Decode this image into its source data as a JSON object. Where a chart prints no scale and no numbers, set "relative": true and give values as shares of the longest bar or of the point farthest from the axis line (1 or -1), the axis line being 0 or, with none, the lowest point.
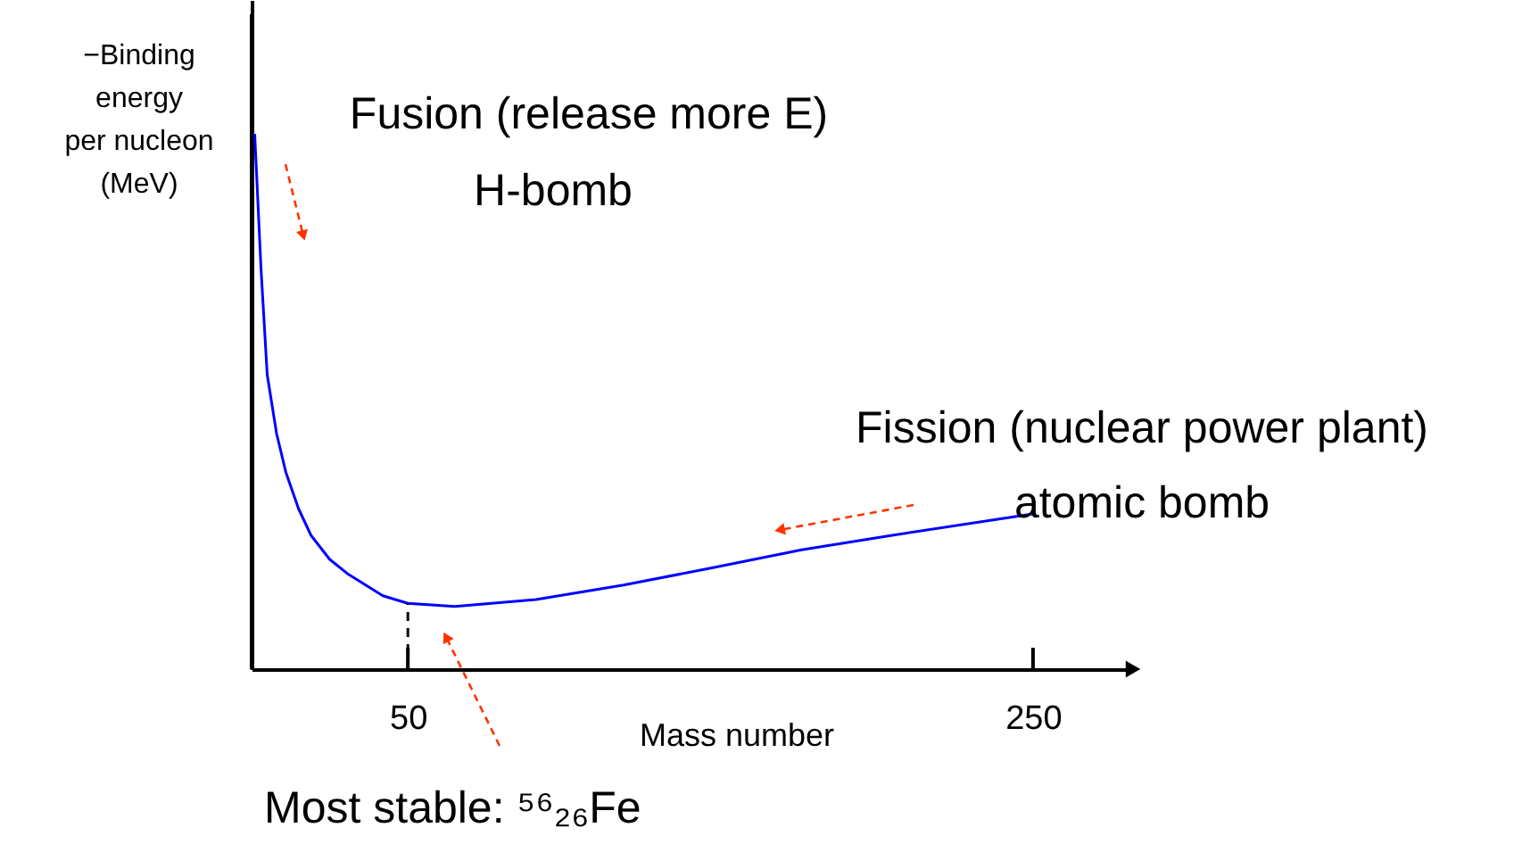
{
  "chart_data": {
    "type": "line",
    "relative": true,
    "xlabel": "Mass number",
    "ylabel": "−Binding\nenergy\nper nucleon\n(MeV)",
    "xlim": [
      0,
      282
    ],
    "xticks": [
      50,
      250
    ],
    "x": [
      1,
      3,
      5,
      8,
      11,
      15,
      19,
      25,
      31,
      42,
      50,
      65,
      91,
      119,
      148,
      176,
      205,
      250
    ],
    "series": [
      {
        "color": "#0000ff",
        "values": [
          1.0,
          0.75,
          0.55,
          0.44,
          0.367,
          0.3,
          0.25,
          0.205,
          0.177,
          0.137,
          0.123,
          0.117,
          0.13,
          0.157,
          0.19,
          0.223,
          0.25,
          0.29
        ]
      }
    ],
    "ref_lines": [
      {
        "axis": "x",
        "value": 50,
        "color": "#000000",
        "line_style": "dashed"
      }
    ],
    "annotations": [
      "Fusion (release more E)",
      "H-bomb",
      "Fission (nuclear power plant)",
      "atomic bomb",
      "Most stable: ⁵⁶₂₆Fe"
    ],
    "grid": false,
    "marker": "none",
    "line_style": "solid"
  }
}
